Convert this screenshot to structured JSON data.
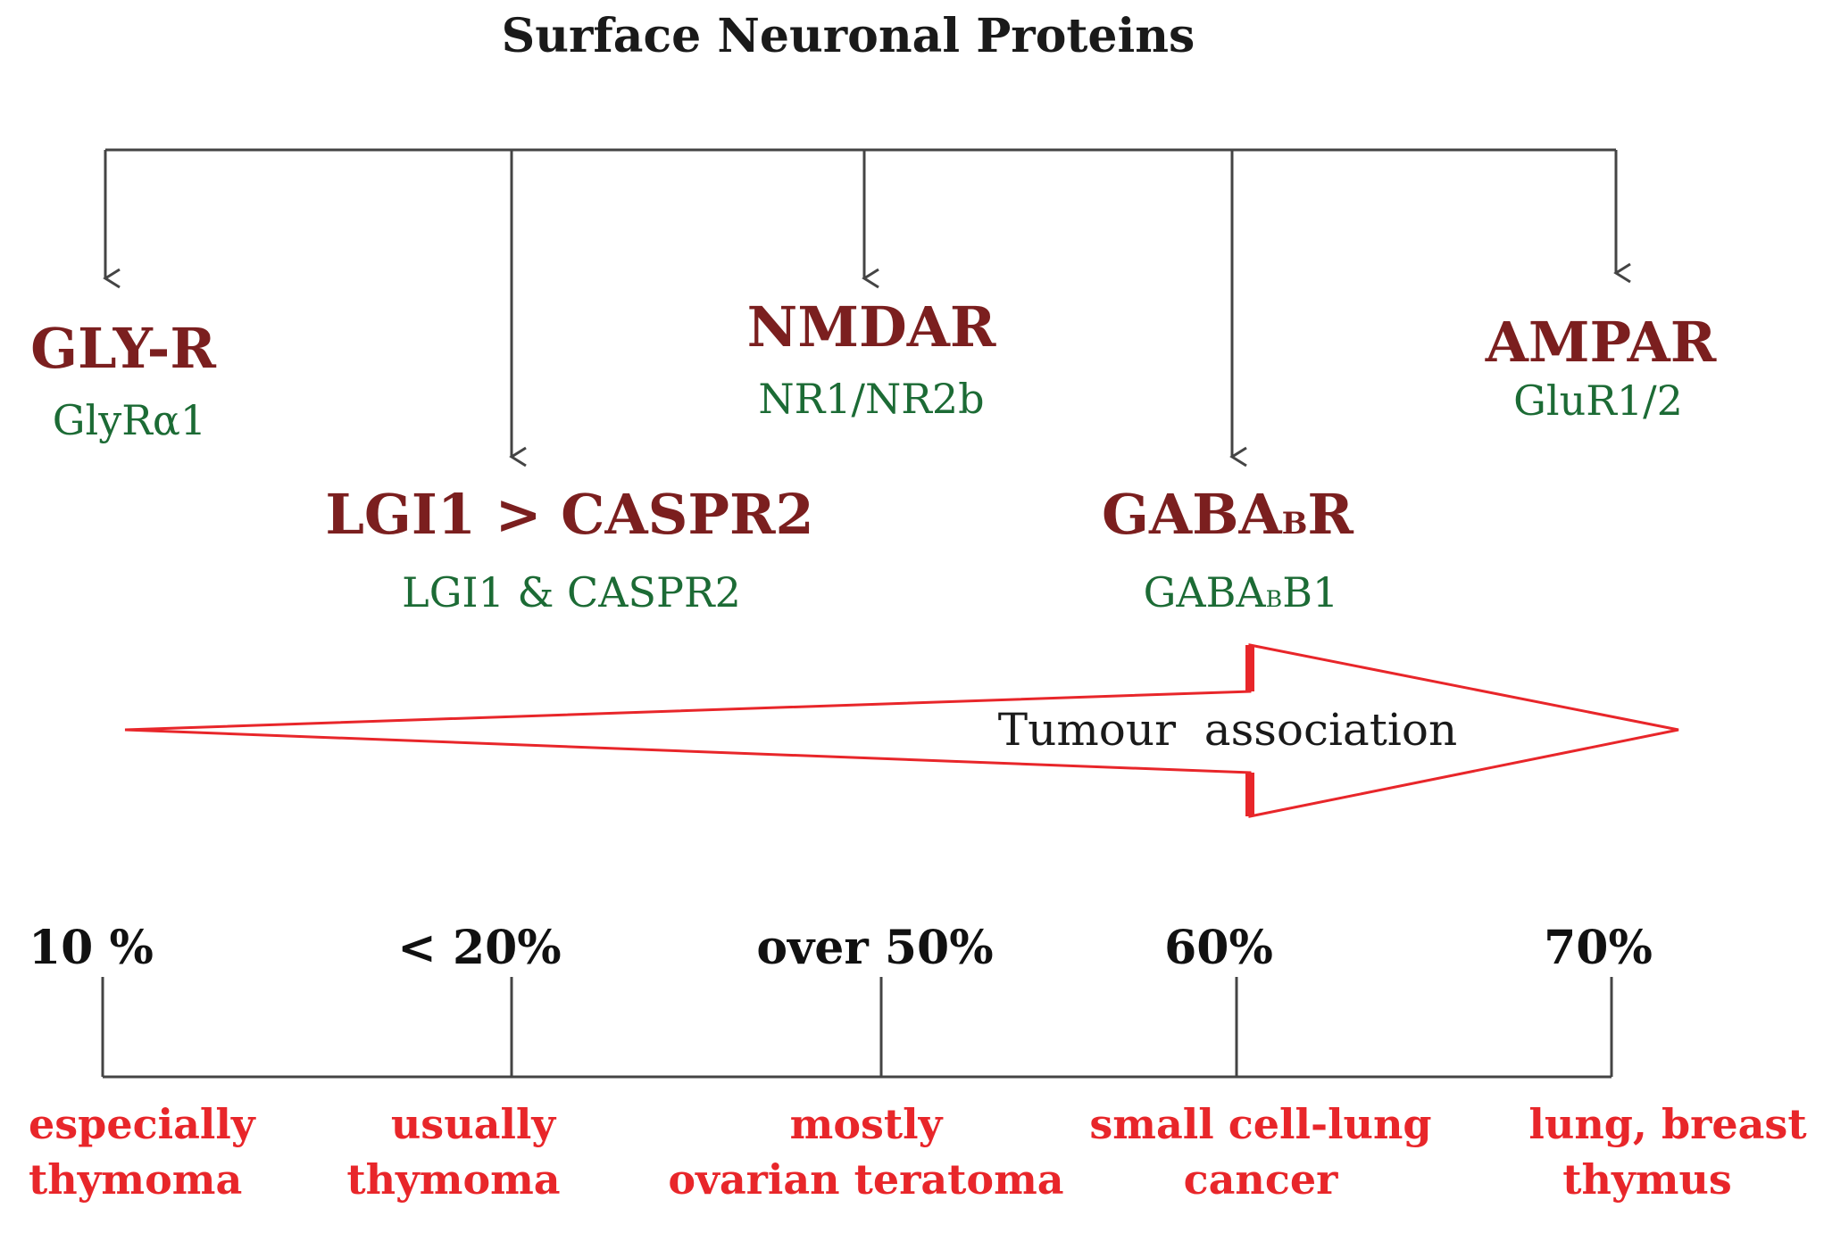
{
  "title": "Surface Neuronal Proteins",
  "receptors": [
    {
      "id": "glyr",
      "name": "GLY-R",
      "antigen": "GlyRα1"
    },
    {
      "id": "lgi1",
      "name": "LGI1 > CASPR2",
      "antigen": "LGI1 & CASPR2"
    },
    {
      "id": "nmdar",
      "name": "NMDAR",
      "antigen": "NR1/NR2b"
    },
    {
      "id": "gabab",
      "name_main": "GABA",
      "name_sub": "B",
      "name_tail": "R",
      "antigen_main": "GABA",
      "antigen_sub": "B",
      "antigen_tail": "B1"
    },
    {
      "id": "ampar",
      "name": "AMPAR",
      "antigen": "GluR1/2"
    }
  ],
  "arrow_label": "Tumour  association",
  "percentages": [
    "10 %",
    "< 20%",
    "over 50%",
    "60%",
    "70%"
  ],
  "tumours": [
    {
      "line1": "especially",
      "line2": "thymoma"
    },
    {
      "line1": "usually",
      "line2": "thymoma"
    },
    {
      "line1": "mostly",
      "line2": "ovarian teratoma"
    },
    {
      "line1": "small cell-lung",
      "line2": "cancer"
    },
    {
      "line1": "lung, breast",
      "line2": "thymus"
    }
  ],
  "colors": {
    "receptor": "#7b1f1f",
    "antigen": "#1c6b35",
    "tumour": "#e8262a",
    "arrow_outline": "#e8262a",
    "line": "#444444"
  }
}
